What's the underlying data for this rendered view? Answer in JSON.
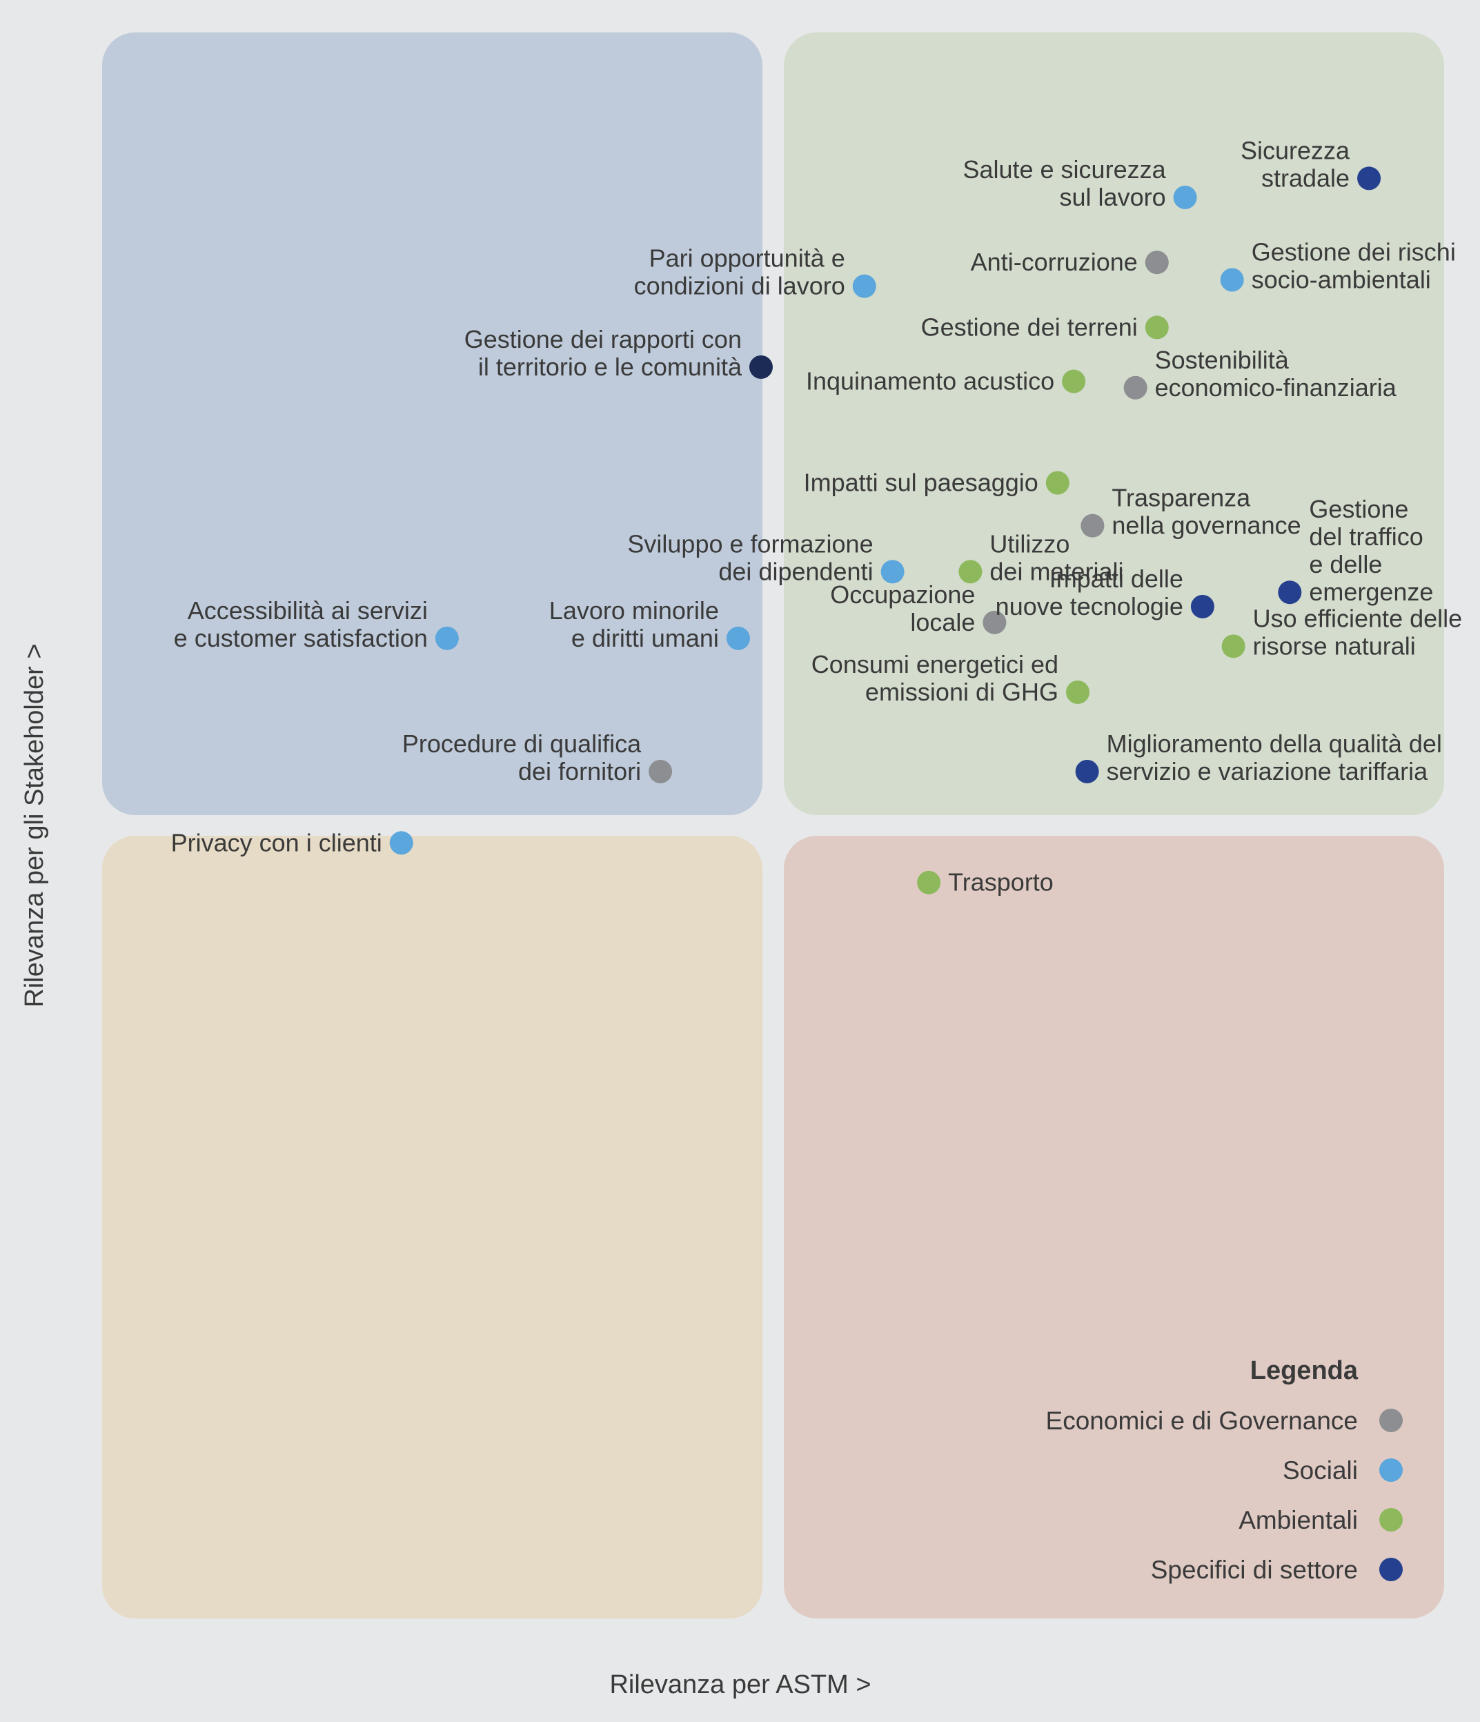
{
  "chart_data": {
    "type": "scatter",
    "title": "",
    "xlabel": "Rilevanza per ASTM  >",
    "ylabel": "Rilevanza per gli Stakeholder  >",
    "xlim": [
      0,
      100
    ],
    "ylim": [
      0,
      100
    ],
    "grid": false,
    "quadrant_colors": {
      "top_left": "#bfcbda",
      "top_right": "#d3dccd",
      "bottom_left": "#e6dbc6",
      "bottom_right": "#dfcbc4"
    },
    "categories": {
      "economic": {
        "name": "Economici e di Governance",
        "color": "#8c8e91"
      },
      "social": {
        "name": "Sociali",
        "color": "#5aa6dd"
      },
      "environmental": {
        "name": "Ambientali",
        "color": "#8db95c"
      },
      "sector": {
        "name": "Specifici di settore",
        "color": "#25408f"
      },
      "sector_dark": {
        "color": "#1b2b55"
      }
    },
    "points": [
      {
        "label": [
          "Sicurezza",
          "stradale"
        ],
        "x": 94.4,
        "y": 90.8,
        "cat": "sector",
        "side": "left"
      },
      {
        "label": [
          "Salute e sicurezza",
          "sul lavoro"
        ],
        "x": 80.7,
        "y": 89.6,
        "cat": "social",
        "side": "left"
      },
      {
        "label": [
          "Anti-corruzione"
        ],
        "x": 78.6,
        "y": 85.5,
        "cat": "economic",
        "side": "left"
      },
      {
        "label": [
          "Gestione dei rischi",
          "socio-ambientali"
        ],
        "x": 84.2,
        "y": 84.4,
        "cat": "social",
        "side": "right"
      },
      {
        "label": [
          "Pari opportunità e",
          "condizioni di lavoro"
        ],
        "x": 56.8,
        "y": 84.0,
        "cat": "social",
        "side": "left"
      },
      {
        "label": [
          "Gestione dei terreni"
        ],
        "x": 78.6,
        "y": 81.4,
        "cat": "environmental",
        "side": "left"
      },
      {
        "label": [
          "Gestione dei rapporti con",
          "il territorio e le comunità"
        ],
        "x": 49.1,
        "y": 78.9,
        "cat": "sector_dark",
        "side": "left"
      },
      {
        "label": [
          "Inquinamento acustico"
        ],
        "x": 72.4,
        "y": 78.0,
        "cat": "environmental",
        "side": "left"
      },
      {
        "label": [
          "Sostenibilità",
          "economico-finanziaria"
        ],
        "x": 77.0,
        "y": 77.6,
        "cat": "economic",
        "side": "right"
      },
      {
        "label": [
          "Impatti sul paesaggio"
        ],
        "x": 71.2,
        "y": 71.6,
        "cat": "environmental",
        "side": "left"
      },
      {
        "label": [
          "Trasparenza",
          "nella governance"
        ],
        "x": 73.8,
        "y": 68.9,
        "cat": "economic",
        "side": "right"
      },
      {
        "label": [
          "Gestione",
          "del traffico",
          "e delle",
          "emergenze"
        ],
        "x": 88.5,
        "y": 64.7,
        "cat": "sector",
        "side": "right"
      },
      {
        "label": [
          "Sviluppo e formazione",
          "dei dipendenti"
        ],
        "x": 58.9,
        "y": 66.0,
        "cat": "social",
        "side": "left"
      },
      {
        "label": [
          "Utilizzo",
          "dei materiali"
        ],
        "x": 64.7,
        "y": 66.0,
        "cat": "environmental",
        "side": "right"
      },
      {
        "label": [
          "Accessibilità ai servizi",
          "e customer satisfaction"
        ],
        "x": 25.7,
        "y": 61.8,
        "cat": "social",
        "side": "left"
      },
      {
        "label": [
          "Lavoro minorile",
          "e diritti umani"
        ],
        "x": 47.4,
        "y": 61.8,
        "cat": "social",
        "side": "left"
      },
      {
        "label": [
          "Occupazione",
          "locale"
        ],
        "x": 66.5,
        "y": 62.8,
        "cat": "economic",
        "side": "left"
      },
      {
        "label": [
          "Impatti delle",
          "nuove tecnologie"
        ],
        "x": 82.0,
        "y": 63.8,
        "cat": "sector",
        "side": "left"
      },
      {
        "label": [
          "Uso efficiente delle",
          "risorse naturali"
        ],
        "x": 84.3,
        "y": 61.3,
        "cat": "environmental",
        "side": "right"
      },
      {
        "label": [
          "Consumi energetici ed",
          "emissioni di GHG"
        ],
        "x": 72.7,
        "y": 58.4,
        "cat": "environmental",
        "side": "left"
      },
      {
        "label": [
          "Procedure di qualifica",
          "dei fornitori"
        ],
        "x": 41.6,
        "y": 53.4,
        "cat": "economic",
        "side": "left"
      },
      {
        "label": [
          "Miglioramento della qualità del",
          "servizio e variazione tariffaria"
        ],
        "x": 73.4,
        "y": 53.4,
        "cat": "sector",
        "side": "right"
      },
      {
        "label": [
          "Privacy con i clienti"
        ],
        "x": 22.3,
        "y": 48.9,
        "cat": "social",
        "side": "left"
      },
      {
        "label": [
          "Trasporto"
        ],
        "x": 61.6,
        "y": 46.4,
        "cat": "environmental",
        "side": "right"
      }
    ],
    "legend": {
      "title": "Legenda",
      "position": "bottom-right",
      "items": [
        {
          "name": "Economici e di Governance",
          "cat": "economic"
        },
        {
          "name": "Sociali",
          "cat": "social"
        },
        {
          "name": "Ambientali",
          "cat": "environmental"
        },
        {
          "name": "Specifici di settore",
          "cat": "sector"
        }
      ]
    }
  }
}
